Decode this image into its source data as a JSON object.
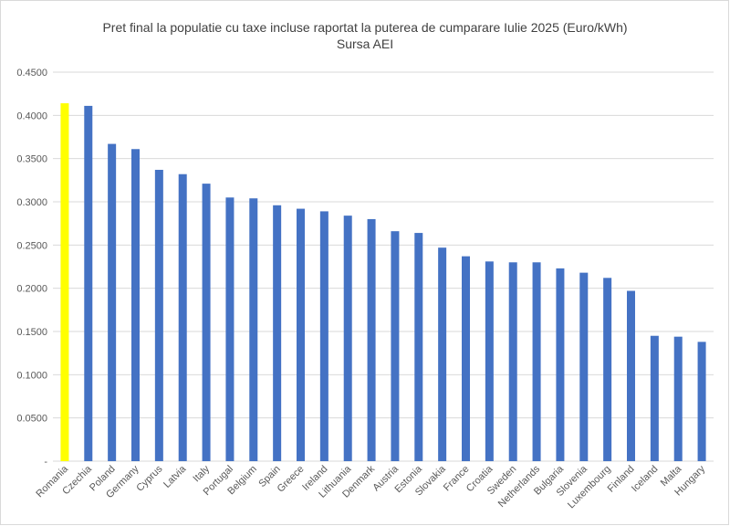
{
  "chart_data": {
    "type": "bar",
    "title": "Pret final la populatie cu taxe incluse raportat la puterea de cumparare Iulie 2025 (Euro/kWh)",
    "subtitle": "Sursa AEI",
    "xlabel": "",
    "ylabel": "",
    "ylim": [
      0,
      0.45
    ],
    "y_ticks": [
      0,
      0.05,
      0.1,
      0.15,
      0.2,
      0.25,
      0.3,
      0.35,
      0.4,
      0.45
    ],
    "y_tick_labels": [
      "-",
      "0.0500",
      "0.1000",
      "0.1500",
      "0.2000",
      "0.2500",
      "0.3000",
      "0.3500",
      "0.4000",
      "0.4500"
    ],
    "grid": true,
    "legend": "none",
    "categories": [
      "Romania",
      "Czechia",
      "Poland",
      "Germany",
      "Cyprus",
      "Latvia",
      "Italy",
      "Portugal",
      "Belgium",
      "Spain",
      "Greece",
      "Ireland",
      "Lithuania",
      "Denmark",
      "Austria",
      "Estonia",
      "Slovakia",
      "France",
      "Croatia",
      "Sweden",
      "Netherlands",
      "Bulgaria",
      "Slovenia",
      "Luxembourg",
      "Finland",
      "Iceland",
      "Malta",
      "Hungary"
    ],
    "values": [
      0.414,
      0.411,
      0.367,
      0.361,
      0.337,
      0.332,
      0.321,
      0.305,
      0.304,
      0.296,
      0.292,
      0.289,
      0.284,
      0.28,
      0.266,
      0.264,
      0.247,
      0.237,
      0.231,
      0.23,
      0.23,
      0.223,
      0.218,
      0.212,
      0.197,
      0.145,
      0.144,
      0.138
    ],
    "colors": {
      "default": "#4472c4",
      "highlight": "#ffff00",
      "highlight_category": "Romania"
    }
  }
}
